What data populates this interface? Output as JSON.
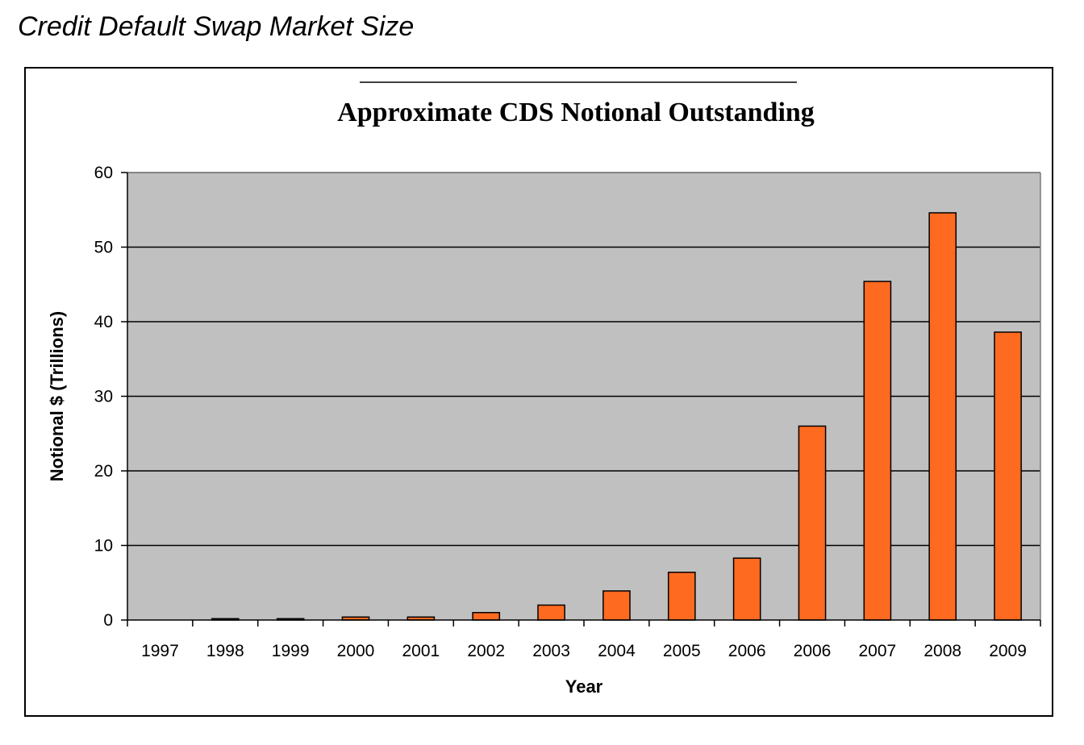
{
  "header": {
    "title": "Credit Default Swap Market Size"
  },
  "chart_data": {
    "type": "bar",
    "title": "Approximate CDS Notional Outstanding",
    "xlabel": "Year",
    "ylabel": "Notional $ (Trillions)",
    "ylim": [
      0,
      60
    ],
    "yticks": [
      0,
      10,
      20,
      30,
      40,
      50,
      60
    ],
    "grid": true,
    "legend": "none",
    "categories": [
      "1997",
      "1998",
      "1999",
      "2000",
      "2001",
      "2002",
      "2003",
      "2004",
      "2005",
      "2006",
      "2006",
      "2007",
      "2008",
      "2009"
    ],
    "values": [
      0,
      0.18,
      0.18,
      0.4,
      0.4,
      1.0,
      2.0,
      3.9,
      6.4,
      8.3,
      26.0,
      45.4,
      54.6,
      38.6
    ],
    "colors": {
      "bar": "#ff6a21",
      "plot_bg": "#c0c0c0",
      "grid": "#000000"
    }
  }
}
